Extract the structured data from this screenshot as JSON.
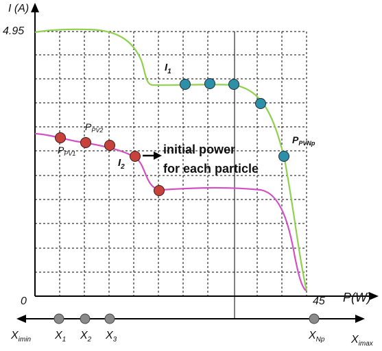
{
  "figure": {
    "y_axis_label": "I (A)",
    "y_max_label": "4.95",
    "origin_label": "0",
    "x_max_label": "45",
    "x_axis_label": "P(W)",
    "annotation_line1": "initial power",
    "annotation_line2": "for each particle",
    "curve_labels": {
      "i1": "I",
      "i1_sub": "1",
      "i2": "I",
      "i2_sub": "2"
    },
    "ppv_labels": {
      "p1": "P",
      "p1_sub": "PV1",
      "p2": "P",
      "p2_sub": "PV2",
      "pnp": "P",
      "pnp_sub": "PVNp"
    },
    "particle_axis": {
      "min_label": "X",
      "min_sub": "imin",
      "max_label": "X",
      "max_sub": "imax",
      "x1": "X",
      "x1_sub": "1",
      "x2": "X",
      "x2_sub": "2",
      "x3": "X",
      "x3_sub": "3",
      "xnp": "X",
      "xnp_sub": "Np"
    }
  },
  "colors": {
    "curve1": "#8fd14f",
    "curve2": "#d24fc4",
    "particle_blue": "#2e8fa8",
    "particle_red": "#c8423c",
    "particle_gray": "#8a8a8a",
    "grid": "#000000",
    "axis": "#000000"
  }
}
